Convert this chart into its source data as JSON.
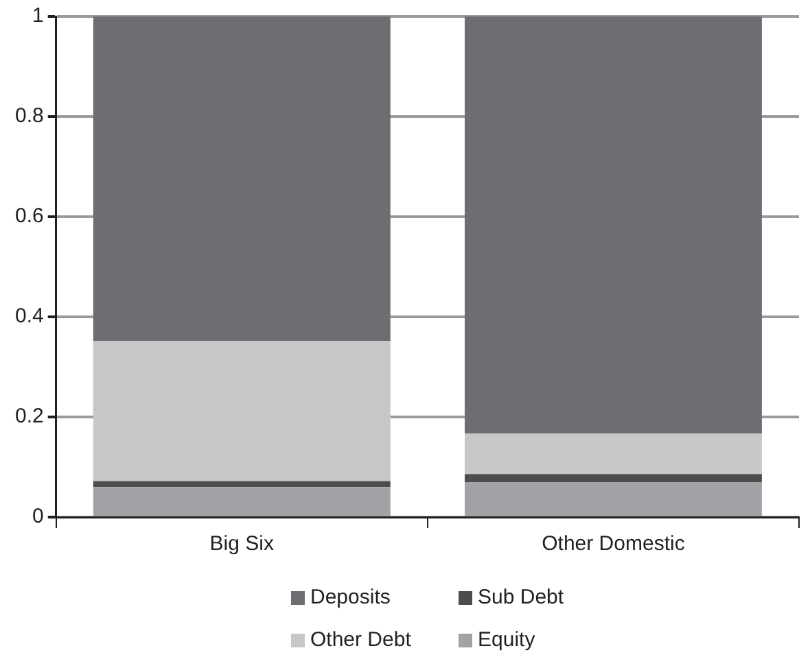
{
  "chart_data": {
    "type": "bar",
    "stacked": true,
    "categories": [
      "Big Six",
      "Other Domestic"
    ],
    "series": [
      {
        "name": "Equity",
        "color": "#a1a2a5",
        "values": [
          0.06,
          0.07
        ]
      },
      {
        "name": "Sub Debt",
        "color": "#4d4d4f",
        "values": [
          0.012,
          0.016
        ]
      },
      {
        "name": "Other Debt",
        "color": "#c6c7c9",
        "values": [
          0.28,
          0.081
        ]
      },
      {
        "name": "Deposits",
        "color": "#6d6e71",
        "values": [
          0.648,
          0.833
        ]
      }
    ],
    "ylim": [
      0,
      1
    ],
    "yticks": [
      0,
      0.2,
      0.4,
      0.6,
      0.8,
      1
    ],
    "grid": "y",
    "legend": "bottom"
  }
}
